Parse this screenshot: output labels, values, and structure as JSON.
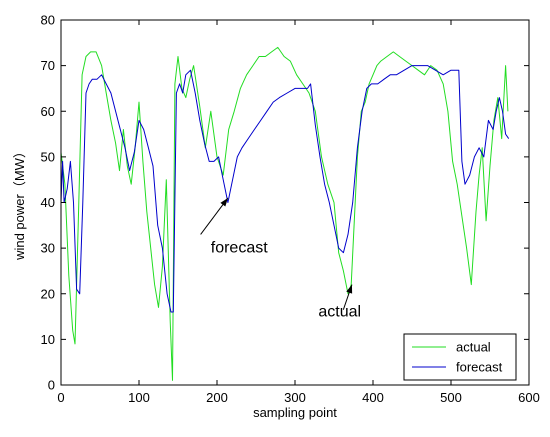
{
  "chart_data": {
    "type": "line",
    "xlabel": "sampling point",
    "ylabel": "wind power（MW）",
    "xlim": [
      0,
      600
    ],
    "ylim": [
      0,
      80
    ],
    "xticks": [
      "0",
      "100",
      "200",
      "300",
      "400",
      "500",
      "600"
    ],
    "yticks": [
      "0",
      "10",
      "20",
      "30",
      "40",
      "50",
      "60",
      "70",
      "80"
    ],
    "grid": false,
    "legend_position": "bottom-right",
    "series": [
      {
        "name": "actual",
        "color": "#22dd22",
        "x": [
          0,
          5,
          10,
          15,
          18,
          22,
          27,
          32,
          38,
          45,
          52,
          58,
          64,
          70,
          75,
          80,
          85,
          90,
          95,
          100,
          105,
          110,
          115,
          120,
          125,
          130,
          135,
          140,
          143,
          146,
          150,
          155,
          160,
          165,
          170,
          178,
          185,
          192,
          200,
          208,
          215,
          222,
          230,
          238,
          246,
          254,
          262,
          270,
          278,
          286,
          294,
          302,
          310,
          318,
          326,
          334,
          342,
          350,
          356,
          362,
          368,
          372,
          376,
          380,
          385,
          390,
          395,
          400,
          405,
          410,
          418,
          426,
          434,
          442,
          450,
          458,
          466,
          474,
          482,
          490,
          496,
          502,
          508,
          514,
          520,
          526,
          532,
          536,
          540,
          545,
          550,
          555,
          560,
          565,
          570,
          573
        ],
        "y": [
          51,
          44,
          24,
          12,
          9,
          35,
          68,
          72,
          73,
          73,
          70,
          64,
          58,
          53,
          47,
          56,
          48,
          44,
          52,
          62,
          49,
          38,
          30,
          22,
          17,
          26,
          45,
          14,
          1,
          66,
          72,
          65,
          63,
          67,
          70,
          61,
          52,
          60,
          50,
          46,
          56,
          60,
          65,
          68,
          70,
          72,
          72,
          73,
          74,
          72,
          71,
          68,
          66,
          64,
          60,
          50,
          44,
          40,
          29,
          25,
          20,
          22,
          36,
          50,
          60,
          62,
          66,
          68,
          70,
          71,
          72,
          73,
          72,
          71,
          70,
          69,
          68,
          70,
          69,
          66,
          60,
          49,
          44,
          37,
          30,
          22,
          38,
          46,
          52,
          36,
          48,
          58,
          63,
          54,
          70,
          60
        ]
      },
      {
        "name": "forecast",
        "color": "#0000cc",
        "x": [
          0,
          2,
          4,
          8,
          12,
          16,
          20,
          24,
          28,
          32,
          36,
          40,
          46,
          52,
          58,
          64,
          70,
          76,
          82,
          88,
          94,
          100,
          106,
          112,
          118,
          124,
          130,
          136,
          141,
          144,
          148,
          152,
          156,
          160,
          166,
          172,
          178,
          184,
          190,
          196,
          202,
          208,
          214,
          220,
          226,
          232,
          240,
          248,
          256,
          264,
          272,
          280,
          290,
          300,
          310,
          316,
          320,
          326,
          332,
          338,
          344,
          350,
          356,
          362,
          368,
          374,
          380,
          386,
          392,
          398,
          406,
          414,
          422,
          430,
          440,
          450,
          460,
          470,
          480,
          490,
          500,
          510,
          514,
          518,
          524,
          530,
          536,
          542,
          548,
          554,
          558,
          562,
          566,
          570,
          574
        ],
        "y": [
          40,
          49,
          40,
          43,
          49,
          40,
          21,
          20,
          40,
          64,
          66,
          67,
          67,
          68,
          66,
          64,
          60,
          56,
          52,
          47,
          51,
          58,
          56,
          52,
          48,
          35,
          30,
          20,
          16,
          16,
          64,
          66,
          64,
          68,
          69,
          64,
          58,
          53,
          49,
          49,
          50,
          45,
          40,
          45,
          50,
          52,
          54,
          56,
          58,
          60,
          62,
          63,
          64,
          65,
          65,
          65,
          66,
          57,
          50,
          44,
          40,
          35,
          30,
          29,
          33,
          40,
          52,
          60,
          65,
          66,
          66,
          67,
          68,
          68,
          69,
          70,
          70,
          70,
          69,
          68,
          69,
          69,
          49,
          44,
          46,
          50,
          52,
          50,
          58,
          56,
          60,
          63,
          60,
          55,
          54
        ]
      }
    ],
    "annotations": [
      {
        "text": "forecast",
        "target_x": 214,
        "target_y": 41,
        "text_x": 192,
        "text_y": 29
      },
      {
        "text": "actual",
        "target_x": 373,
        "target_y": 22,
        "text_x": 330,
        "text_y": 15
      }
    ]
  }
}
